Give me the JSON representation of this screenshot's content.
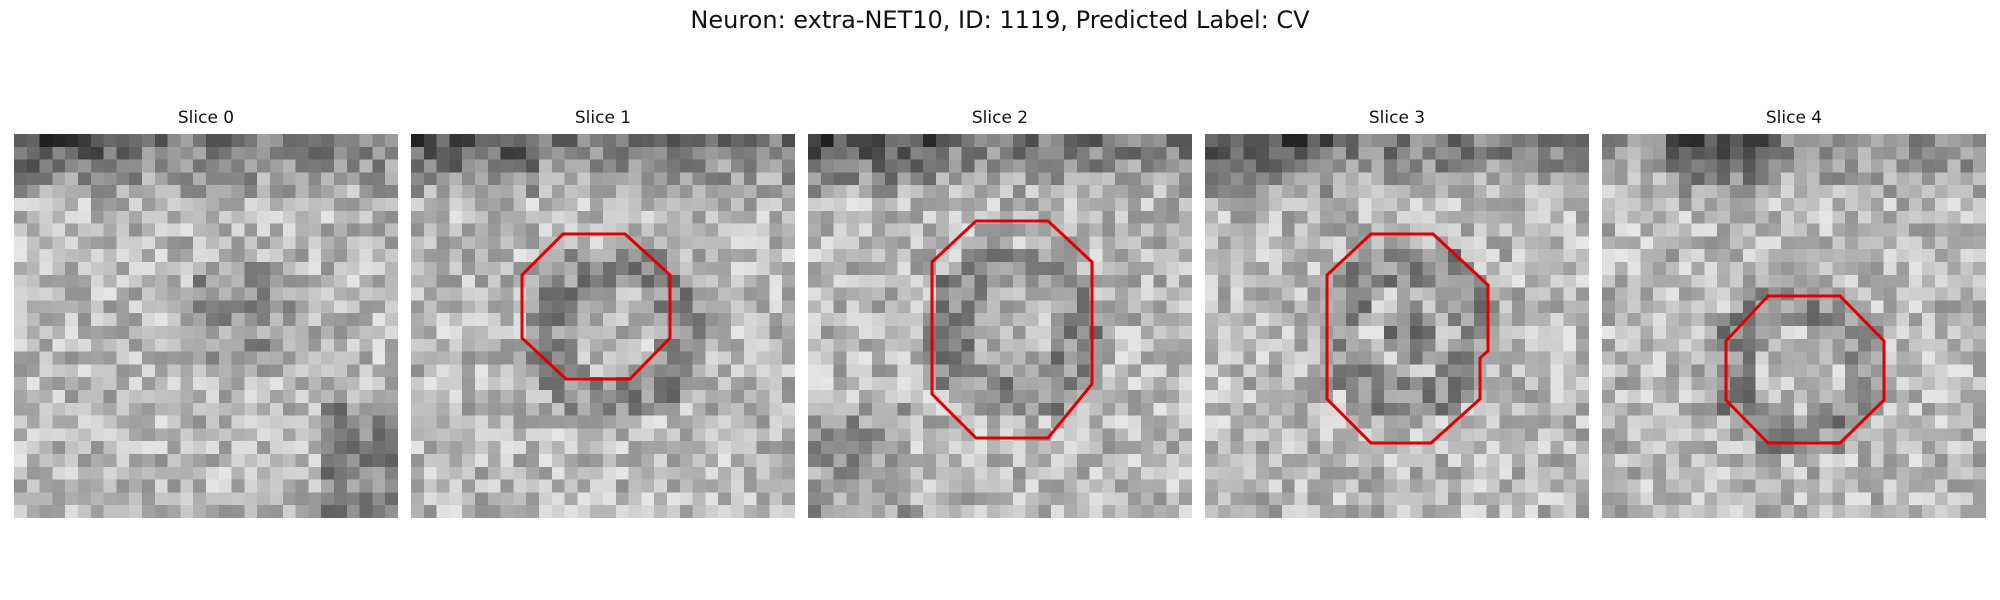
{
  "figure": {
    "title": "Neuron: extra-NET10, ID: 1119, Predicted Label: CV"
  },
  "slices": [
    {
      "title": "Slice 0",
      "has_outline": false
    },
    {
      "title": "Slice 1",
      "has_outline": true
    },
    {
      "title": "Slice 2",
      "has_outline": true
    },
    {
      "title": "Slice 3",
      "has_outline": true
    },
    {
      "title": "Slice 4",
      "has_outline": true
    }
  ],
  "style": {
    "outline_color": "#e00000",
    "colormap": "grayscale"
  }
}
